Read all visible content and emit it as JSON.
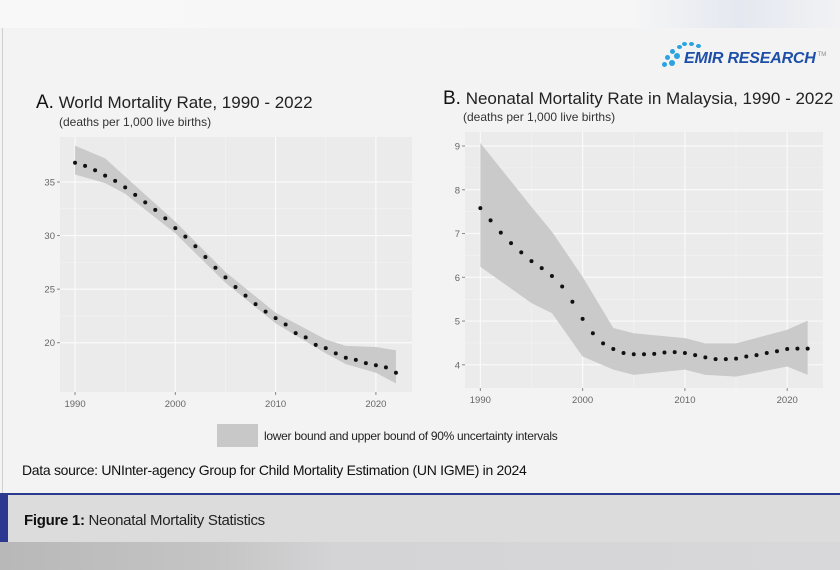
{
  "brand": {
    "name": "EMIR RESEARCH",
    "trademark": "TM",
    "color": "#1d4fa8",
    "dot_color": "#2aa3e0"
  },
  "legend": {
    "label": "lower bound and upper bound of 90% uncertainty intervals",
    "swatch_color": "#c8c8c8"
  },
  "source": "Data source: UNInter-agency Group for Child Mortality Estimation (UN IGME) in 2024",
  "figure": {
    "label": "Figure 1:",
    "caption": "Neonatal Mortality Statistics",
    "accent": "#2b3990"
  },
  "chart_data": [
    {
      "type": "scatter",
      "panel_letter": "A.",
      "title": "World Mortality Rate, 1990 - 2022",
      "subtitle": "(deaths per 1,000 live births)",
      "xlabel": "",
      "ylabel": "",
      "xlim": [
        1988.5,
        2023.6
      ],
      "ylim": [
        15.4,
        39.2
      ],
      "xticks": [
        1990,
        2000,
        2010,
        2020
      ],
      "yticks": [
        20,
        25,
        30,
        35
      ],
      "grid": true,
      "point_color": "#111111",
      "band_color": "#c8c8c8",
      "x": [
        1990,
        1991,
        1992,
        1993,
        1994,
        1995,
        1996,
        1997,
        1998,
        1999,
        2000,
        2001,
        2002,
        2003,
        2004,
        2005,
        2006,
        2007,
        2008,
        2009,
        2010,
        2011,
        2012,
        2013,
        2014,
        2015,
        2016,
        2017,
        2018,
        2019,
        2020,
        2021,
        2022
      ],
      "y": [
        36.8,
        36.5,
        36.1,
        35.6,
        35.1,
        34.5,
        33.8,
        33.1,
        32.4,
        31.6,
        30.7,
        29.9,
        29.0,
        28.0,
        27.0,
        26.1,
        25.2,
        24.4,
        23.6,
        22.9,
        22.3,
        21.7,
        20.9,
        20.5,
        19.8,
        19.5,
        19.0,
        18.6,
        18.4,
        18.1,
        17.9,
        17.7,
        17.2
      ],
      "band": {
        "x": [
          1990,
          1993,
          1995,
          2000,
          2005,
          2010,
          2015,
          2017,
          2020,
          2022
        ],
        "lower": [
          35.7,
          34.9,
          33.9,
          30.2,
          25.6,
          21.8,
          19.0,
          18.0,
          17.2,
          16.2
        ],
        "upper": [
          38.4,
          37.2,
          35.5,
          31.3,
          26.6,
          22.8,
          20.3,
          19.7,
          19.6,
          19.3
        ]
      }
    },
    {
      "type": "scatter",
      "panel_letter": "B.",
      "title": "Neonatal Mortality Rate in Malaysia, 1990 - 2022",
      "subtitle": "(deaths per 1,000 live births)",
      "xlabel": "",
      "ylabel": "",
      "xlim": [
        1988.5,
        2023.5
      ],
      "ylim": [
        3.47,
        9.32
      ],
      "xticks": [
        1990,
        2000,
        2010,
        2020
      ],
      "yticks": [
        4,
        5,
        6,
        7,
        8,
        9
      ],
      "grid": true,
      "point_color": "#111111",
      "band_color": "#c8c8c8",
      "x": [
        1990,
        1991,
        1992,
        1993,
        1994,
        1995,
        1996,
        1997,
        1998,
        1999,
        2000,
        2001,
        2002,
        2003,
        2004,
        2005,
        2006,
        2007,
        2008,
        2009,
        2010,
        2011,
        2012,
        2013,
        2014,
        2015,
        2016,
        2017,
        2018,
        2019,
        2020,
        2021,
        2022
      ],
      "y": [
        7.58,
        7.3,
        7.02,
        6.78,
        6.57,
        6.37,
        6.21,
        6.03,
        5.79,
        5.44,
        5.05,
        4.72,
        4.49,
        4.36,
        4.27,
        4.24,
        4.24,
        4.25,
        4.28,
        4.29,
        4.27,
        4.22,
        4.17,
        4.13,
        4.13,
        4.14,
        4.19,
        4.22,
        4.27,
        4.31,
        4.36,
        4.37,
        4.37
      ],
      "band": {
        "x": [
          1990,
          1995,
          1997,
          2000,
          2003,
          2005,
          2010,
          2012,
          2015,
          2020,
          2022
        ],
        "lower": [
          6.24,
          5.41,
          5.18,
          4.19,
          3.89,
          3.77,
          3.89,
          3.77,
          3.73,
          3.96,
          3.77
        ],
        "upper": [
          9.07,
          7.61,
          7.04,
          6.01,
          4.84,
          4.72,
          4.61,
          4.49,
          4.49,
          4.8,
          5.01
        ]
      }
    }
  ]
}
